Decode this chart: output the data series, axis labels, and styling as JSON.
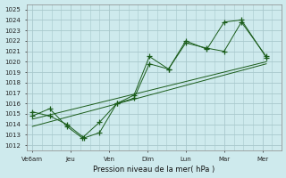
{
  "title": "",
  "xlabel": "Pression niveau de la mer( hPa )",
  "background_color": "#ceeaed",
  "grid_color": "#a8c8cc",
  "line_color": "#1a5c1a",
  "ylim": [
    1011.5,
    1025.5
  ],
  "yticks": [
    1012,
    1013,
    1014,
    1015,
    1016,
    1017,
    1018,
    1019,
    1020,
    1021,
    1022,
    1023,
    1024,
    1025
  ],
  "xtick_labels": [
    "Ve6am",
    "Jeu",
    "Ven",
    "Dim",
    "Lun",
    "Mar",
    "Mer"
  ],
  "xtick_positions": [
    0,
    1,
    2,
    3,
    4,
    5,
    6
  ],
  "xlim": [
    -0.15,
    6.5
  ],
  "line1_x": [
    0,
    0.45,
    0.9,
    1.3,
    1.75,
    2.2,
    2.65,
    3.05,
    3.55,
    4.0,
    4.55,
    5.0,
    5.45,
    6.1
  ],
  "line1_y": [
    1014.8,
    1015.5,
    1013.8,
    1012.7,
    1014.2,
    1016.0,
    1016.5,
    1019.8,
    1019.3,
    1021.8,
    1021.3,
    1021.0,
    1023.8,
    1020.5
  ],
  "line2_x": [
    0,
    0.45,
    0.9,
    1.35,
    1.75,
    2.2,
    2.65,
    3.05,
    3.55,
    4.0,
    4.55,
    5.0,
    5.45,
    6.1
  ],
  "line2_y": [
    1015.2,
    1014.8,
    1014.0,
    1012.7,
    1013.2,
    1016.0,
    1016.8,
    1020.5,
    1019.3,
    1022.0,
    1021.2,
    1023.8,
    1024.0,
    1020.4
  ],
  "trend1_x": [
    0,
    6.1
  ],
  "trend1_y": [
    1014.5,
    1020.0
  ],
  "trend2_x": [
    0,
    6.1
  ],
  "trend2_y": [
    1013.8,
    1019.8
  ]
}
